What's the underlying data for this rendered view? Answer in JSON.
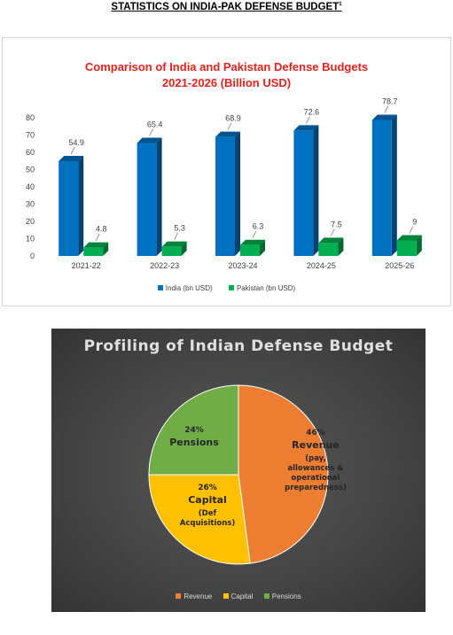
{
  "heading": {
    "text": "STATISTICS ON INDIA-PAK DEFENSE BUDGET",
    "footnote": "1"
  },
  "chart_data": [
    {
      "type": "bar",
      "title_line1": "Comparison of India and Pakistan Defense Budgets",
      "title_line2": "2021-2026 (Billion USD)",
      "categories": [
        "2021-22",
        "2022-23",
        "2023-24",
        "2024-25",
        "2025-26"
      ],
      "series": [
        {
          "name": "India (bn USD)",
          "values": [
            54.9,
            65.4,
            68.9,
            72.6,
            78.7
          ],
          "color": "#0070c0",
          "labels": [
            "54.9",
            "65.4",
            "68.9",
            "72.6",
            "78.7"
          ]
        },
        {
          "name": "Pakistan (bn USD)",
          "values": [
            4.8,
            5.3,
            6.3,
            7.5,
            9
          ],
          "color": "#00b050",
          "labels": [
            "4.8",
            "5.3",
            "6.3",
            "7.5",
            "9"
          ]
        }
      ],
      "ylim": [
        0,
        80
      ],
      "yticks": [
        "0",
        "10",
        "20",
        "30",
        "40",
        "50",
        "60",
        "70",
        "80"
      ],
      "grid": false,
      "legend": "bottom"
    },
    {
      "type": "pie",
      "title": "Profiling of Indian Defense Budget",
      "slices": [
        {
          "name": "Revenue",
          "value": 46,
          "color": "#ed7d31",
          "pct": "46%",
          "label": "Revenue",
          "sublabel": [
            "(pay,",
            "allowances &",
            "operational",
            "preparedness)"
          ]
        },
        {
          "name": "Capital",
          "value": 26,
          "color": "#ffc000",
          "pct": "26%",
          "label": "Capital",
          "sublabel": [
            "(Def",
            "Acquisitions)"
          ]
        },
        {
          "name": "Pensions",
          "value": 24,
          "color": "#70ad47",
          "pct": "24%",
          "label": "Pensions",
          "sublabel": []
        }
      ],
      "legend": "bottom"
    }
  ]
}
